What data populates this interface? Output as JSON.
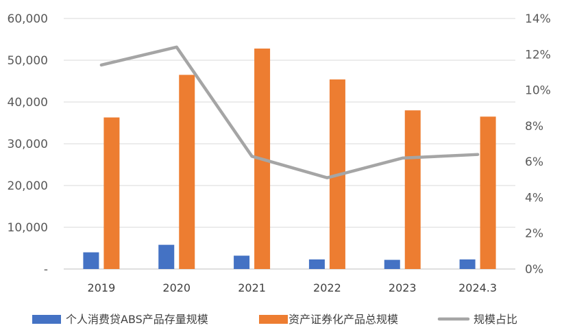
{
  "chart_data": {
    "type": "bar",
    "categories": [
      "2019",
      "2020",
      "2021",
      "2022",
      "2023",
      "2024.3"
    ],
    "series": [
      {
        "name": "个人消费贷ABS产品存量规模",
        "type": "bar",
        "axis": "left",
        "color": "#4472C4",
        "values": [
          4000,
          5800,
          3200,
          2300,
          2200,
          2300
        ]
      },
      {
        "name": "资产证券化产品总规模",
        "type": "bar",
        "axis": "left",
        "color": "#ED7D31",
        "values": [
          36300,
          46500,
          52800,
          45400,
          38000,
          36500
        ]
      },
      {
        "name": "规模占比",
        "type": "line",
        "axis": "right",
        "color": "#A5A5A5",
        "values": [
          11.4,
          12.4,
          6.3,
          5.1,
          6.2,
          6.4
        ]
      }
    ],
    "ylim": [
      0,
      60000
    ],
    "y2lim": [
      0,
      14
    ],
    "y_ticks": [
      "-",
      "10,000",
      "20,000",
      "30,000",
      "40,000",
      "50,000",
      "60,000"
    ],
    "y2_ticks": [
      "0%",
      "2%",
      "4%",
      "6%",
      "8%",
      "10%",
      "12%",
      "14%"
    ],
    "grid": true,
    "legend_position": "bottom"
  }
}
